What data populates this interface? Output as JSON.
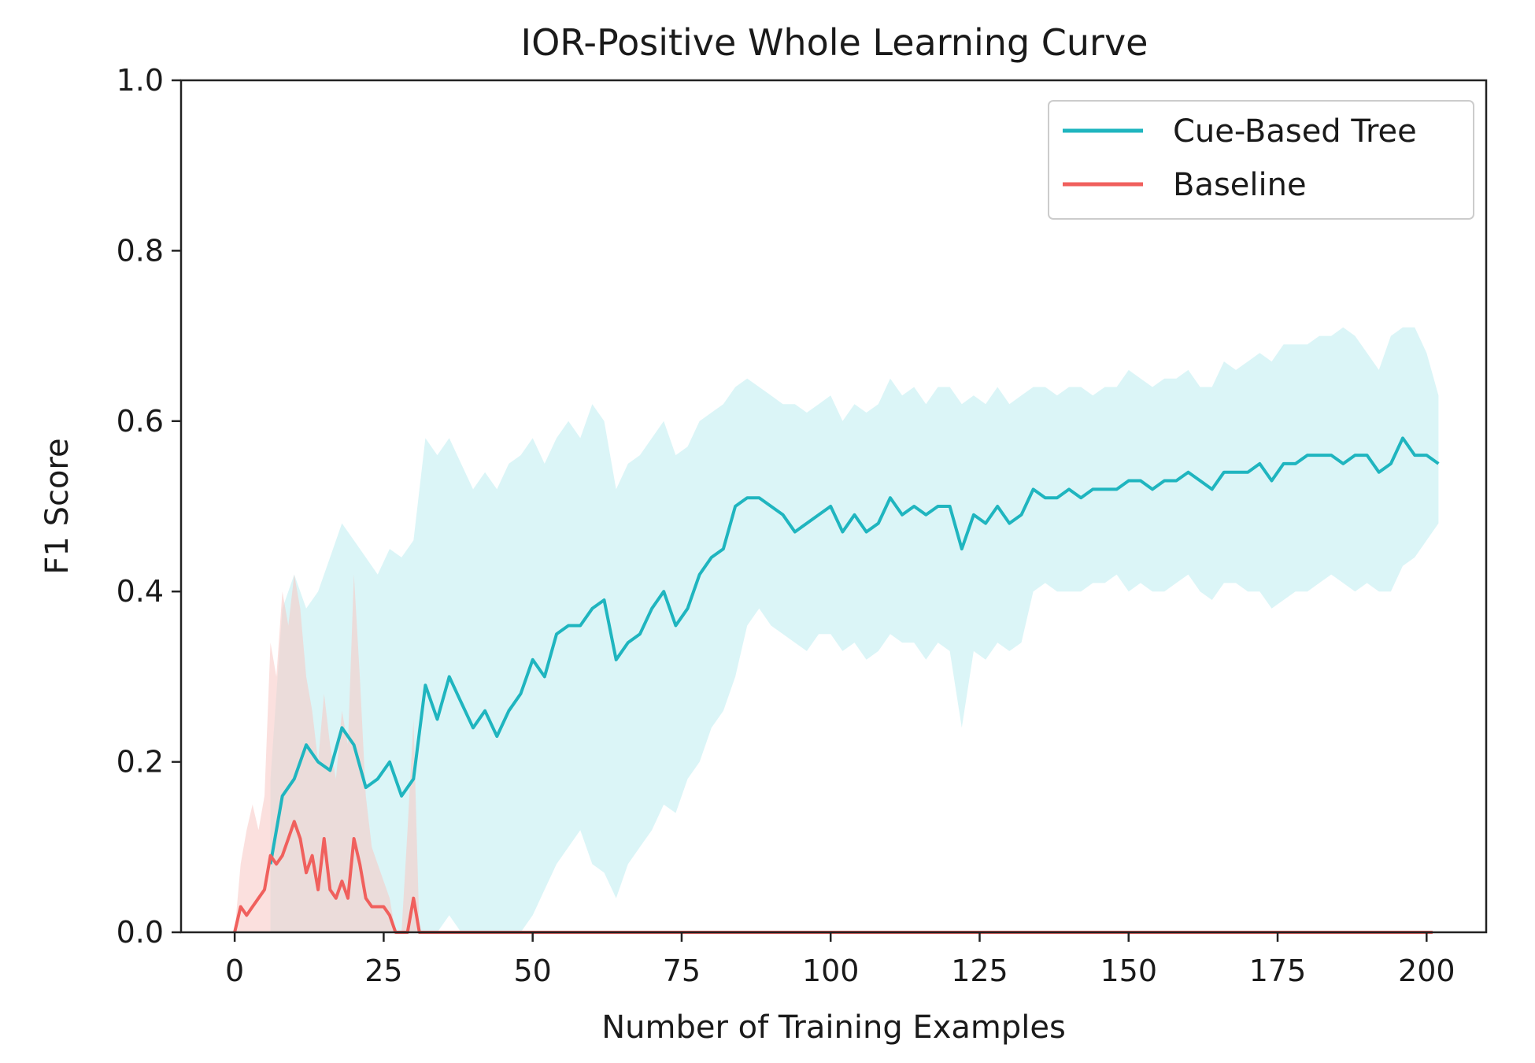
{
  "chart_data": {
    "type": "line",
    "title": "IOR-Positive Whole Learning Curve",
    "xlabel": "Number of Training Examples",
    "ylabel": "F1 Score",
    "xlim": [
      -9,
      210
    ],
    "ylim": [
      0,
      1.0
    ],
    "xticks": [
      0,
      25,
      50,
      75,
      100,
      125,
      150,
      175,
      200
    ],
    "yticks": [
      0.0,
      0.2,
      0.4,
      0.6,
      0.8,
      1.0
    ],
    "xtick_labels": [
      "0",
      "25",
      "50",
      "75",
      "100",
      "125",
      "150",
      "175",
      "200"
    ],
    "ytick_labels": [
      "0.0",
      "0.2",
      "0.4",
      "0.6",
      "0.8",
      "1.0"
    ],
    "grid": false,
    "legend_position": "top-right",
    "series": [
      {
        "name": "Cue-Based Tree",
        "color": "#1fb5bf",
        "band_color": "#a6e6ea",
        "x": [
          6,
          8,
          10,
          12,
          14,
          16,
          18,
          20,
          22,
          24,
          26,
          28,
          30,
          32,
          34,
          36,
          38,
          40,
          42,
          44,
          46,
          48,
          50,
          52,
          54,
          56,
          58,
          60,
          62,
          64,
          66,
          68,
          70,
          72,
          74,
          76,
          78,
          80,
          82,
          84,
          86,
          88,
          90,
          92,
          94,
          96,
          98,
          100,
          102,
          104,
          106,
          108,
          110,
          112,
          114,
          116,
          118,
          120,
          122,
          124,
          126,
          128,
          130,
          132,
          134,
          136,
          138,
          140,
          142,
          144,
          146,
          148,
          150,
          152,
          154,
          156,
          158,
          160,
          162,
          164,
          166,
          168,
          170,
          172,
          174,
          176,
          178,
          180,
          182,
          184,
          186,
          188,
          190,
          192,
          194,
          196,
          198,
          200,
          202
        ],
        "y": [
          0.08,
          0.16,
          0.18,
          0.22,
          0.2,
          0.19,
          0.24,
          0.22,
          0.17,
          0.18,
          0.2,
          0.16,
          0.18,
          0.29,
          0.25,
          0.3,
          0.27,
          0.24,
          0.26,
          0.23,
          0.26,
          0.28,
          0.32,
          0.3,
          0.35,
          0.36,
          0.36,
          0.38,
          0.39,
          0.32,
          0.34,
          0.35,
          0.38,
          0.4,
          0.36,
          0.38,
          0.42,
          0.44,
          0.45,
          0.5,
          0.51,
          0.51,
          0.5,
          0.49,
          0.47,
          0.48,
          0.49,
          0.5,
          0.47,
          0.49,
          0.47,
          0.48,
          0.51,
          0.49,
          0.5,
          0.49,
          0.5,
          0.5,
          0.45,
          0.49,
          0.48,
          0.5,
          0.48,
          0.49,
          0.52,
          0.51,
          0.51,
          0.52,
          0.51,
          0.52,
          0.52,
          0.52,
          0.53,
          0.53,
          0.52,
          0.53,
          0.53,
          0.54,
          0.53,
          0.52,
          0.54,
          0.54,
          0.54,
          0.55,
          0.53,
          0.55,
          0.55,
          0.56,
          0.56,
          0.56,
          0.55,
          0.56,
          0.56,
          0.54,
          0.55,
          0.58,
          0.56,
          0.56,
          0.55
        ],
        "lower": [
          0.0,
          0.0,
          0.0,
          0.0,
          0.0,
          0.0,
          0.0,
          0.0,
          0.0,
          0.0,
          0.0,
          0.0,
          0.0,
          0.0,
          0.0,
          0.02,
          0.0,
          0.0,
          0.0,
          0.0,
          0.0,
          0.0,
          0.02,
          0.05,
          0.08,
          0.1,
          0.12,
          0.08,
          0.07,
          0.04,
          0.08,
          0.1,
          0.12,
          0.15,
          0.14,
          0.18,
          0.2,
          0.24,
          0.26,
          0.3,
          0.36,
          0.38,
          0.36,
          0.35,
          0.34,
          0.33,
          0.35,
          0.35,
          0.33,
          0.34,
          0.32,
          0.33,
          0.35,
          0.34,
          0.34,
          0.32,
          0.34,
          0.33,
          0.24,
          0.33,
          0.32,
          0.34,
          0.33,
          0.34,
          0.4,
          0.41,
          0.4,
          0.4,
          0.4,
          0.41,
          0.41,
          0.42,
          0.4,
          0.41,
          0.4,
          0.4,
          0.41,
          0.42,
          0.4,
          0.39,
          0.41,
          0.41,
          0.4,
          0.4,
          0.38,
          0.39,
          0.4,
          0.4,
          0.41,
          0.42,
          0.41,
          0.4,
          0.41,
          0.4,
          0.4,
          0.43,
          0.44,
          0.46,
          0.48
        ],
        "upper": [
          0.18,
          0.38,
          0.42,
          0.38,
          0.4,
          0.44,
          0.48,
          0.46,
          0.44,
          0.42,
          0.45,
          0.44,
          0.46,
          0.58,
          0.56,
          0.58,
          0.55,
          0.52,
          0.54,
          0.52,
          0.55,
          0.56,
          0.58,
          0.55,
          0.58,
          0.6,
          0.58,
          0.62,
          0.6,
          0.52,
          0.55,
          0.56,
          0.58,
          0.6,
          0.56,
          0.57,
          0.6,
          0.61,
          0.62,
          0.64,
          0.65,
          0.64,
          0.63,
          0.62,
          0.62,
          0.61,
          0.62,
          0.63,
          0.6,
          0.62,
          0.61,
          0.62,
          0.65,
          0.63,
          0.64,
          0.62,
          0.64,
          0.64,
          0.62,
          0.63,
          0.62,
          0.64,
          0.62,
          0.63,
          0.64,
          0.64,
          0.63,
          0.64,
          0.64,
          0.63,
          0.64,
          0.64,
          0.66,
          0.65,
          0.64,
          0.65,
          0.65,
          0.66,
          0.64,
          0.64,
          0.67,
          0.66,
          0.67,
          0.68,
          0.67,
          0.69,
          0.69,
          0.69,
          0.7,
          0.7,
          0.71,
          0.7,
          0.68,
          0.66,
          0.7,
          0.71,
          0.71,
          0.68,
          0.63
        ]
      },
      {
        "name": "Baseline",
        "color": "#f0605d",
        "band_color": "#f7c6c2",
        "x": [
          0,
          1,
          2,
          3,
          4,
          5,
          6,
          7,
          8,
          9,
          10,
          11,
          12,
          13,
          14,
          15,
          16,
          17,
          18,
          19,
          20,
          21,
          22,
          23,
          24,
          25,
          26,
          27,
          28,
          29,
          30,
          31,
          40,
          60,
          80,
          100,
          120,
          140,
          160,
          180,
          201
        ],
        "y": [
          0.0,
          0.03,
          0.02,
          0.03,
          0.04,
          0.05,
          0.09,
          0.08,
          0.09,
          0.11,
          0.13,
          0.11,
          0.07,
          0.09,
          0.05,
          0.11,
          0.05,
          0.04,
          0.06,
          0.04,
          0.11,
          0.08,
          0.04,
          0.03,
          0.03,
          0.03,
          0.02,
          0.0,
          0.0,
          0.0,
          0.04,
          0.0,
          0.0,
          0.0,
          0.0,
          0.0,
          0.0,
          0.0,
          0.0,
          0.0,
          0.0
        ],
        "lower": [
          0.0,
          0.0,
          0.0,
          0.0,
          0.0,
          0.0,
          0.0,
          0.0,
          0.0,
          0.0,
          0.0,
          0.0,
          0.0,
          0.0,
          0.0,
          0.0,
          0.0,
          0.0,
          0.0,
          0.0,
          0.0,
          0.0,
          0.0,
          0.0,
          0.0,
          0.0,
          0.0,
          0.0,
          0.0,
          0.0,
          0.0,
          0.0,
          0.0,
          0.0,
          0.0,
          0.0,
          0.0,
          0.0,
          0.0,
          0.0,
          0.0
        ],
        "upper": [
          0.0,
          0.08,
          0.12,
          0.15,
          0.12,
          0.16,
          0.34,
          0.3,
          0.4,
          0.36,
          0.42,
          0.38,
          0.3,
          0.26,
          0.2,
          0.28,
          0.22,
          0.18,
          0.26,
          0.22,
          0.42,
          0.3,
          0.16,
          0.1,
          0.08,
          0.06,
          0.04,
          0.0,
          0.0,
          0.12,
          0.25,
          0.0,
          0.0,
          0.0,
          0.0,
          0.0,
          0.0,
          0.0,
          0.0,
          0.0,
          0.0
        ]
      }
    ]
  }
}
